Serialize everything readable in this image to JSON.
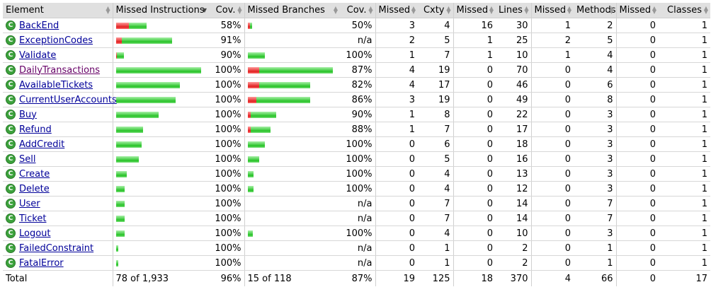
{
  "columns": {
    "element": "Element",
    "missed_instructions": "Missed Instructions",
    "cov": "Cov.",
    "missed_branches": "Missed Branches",
    "cov2": "Cov.",
    "missed": "Missed",
    "cxty": "Cxty",
    "missed_lines": "Missed",
    "lines": "Lines",
    "missed_methods": "Missed",
    "methods": "Methods",
    "missed_classes": "Missed",
    "classes": "Classes"
  },
  "rows": [
    {
      "name": "BackEnd",
      "visited": false,
      "instr_missed": 0.046,
      "instr_covered": 0.064,
      "instr_cov": "58%",
      "br_missed": 0.008,
      "br_covered": 0.008,
      "br_cov": "50%",
      "cx_missed": "3",
      "cxty": "4",
      "ln_missed": "16",
      "lines": "30",
      "m_missed": "1",
      "methods": "2",
      "c_missed": "0",
      "classes": "1"
    },
    {
      "name": "ExceptionCodes",
      "visited": false,
      "instr_missed": 0.02,
      "instr_covered": 0.179,
      "instr_cov": "91%",
      "br_missed": null,
      "br_covered": null,
      "br_cov": "n/a",
      "cx_missed": "2",
      "cxty": "5",
      "ln_missed": "1",
      "lines": "25",
      "m_missed": "2",
      "methods": "5",
      "c_missed": "0",
      "classes": "1"
    },
    {
      "name": "Validate",
      "visited": false,
      "instr_missed": 0.003,
      "instr_covered": 0.025,
      "instr_cov": "90%",
      "br_missed": 0,
      "br_covered": 0.06,
      "br_cov": "100%",
      "cx_missed": "1",
      "cxty": "7",
      "ln_missed": "1",
      "lines": "10",
      "m_missed": "1",
      "methods": "4",
      "c_missed": "0",
      "classes": "1"
    },
    {
      "name": "DailyTransactions",
      "visited": true,
      "instr_missed": 0,
      "instr_covered": 0.3,
      "instr_cov": "100%",
      "br_missed": 0.04,
      "br_covered": 0.26,
      "br_cov": "87%",
      "cx_missed": "4",
      "cxty": "19",
      "ln_missed": "0",
      "lines": "70",
      "m_missed": "0",
      "methods": "4",
      "c_missed": "0",
      "classes": "1"
    },
    {
      "name": "AvailableTickets",
      "visited": false,
      "instr_missed": 0,
      "instr_covered": 0.225,
      "instr_cov": "100%",
      "br_missed": 0.04,
      "br_covered": 0.182,
      "br_cov": "82%",
      "cx_missed": "4",
      "cxty": "17",
      "ln_missed": "0",
      "lines": "46",
      "m_missed": "0",
      "methods": "6",
      "c_missed": "0",
      "classes": "1"
    },
    {
      "name": "CurrentUserAccounts",
      "visited": false,
      "instr_missed": 0,
      "instr_covered": 0.212,
      "instr_cov": "100%",
      "br_missed": 0.03,
      "br_covered": 0.192,
      "br_cov": "86%",
      "cx_missed": "3",
      "cxty": "19",
      "ln_missed": "0",
      "lines": "49",
      "m_missed": "0",
      "methods": "8",
      "c_missed": "0",
      "classes": "1"
    },
    {
      "name": "Buy",
      "visited": false,
      "instr_missed": 0,
      "instr_covered": 0.15,
      "instr_cov": "100%",
      "br_missed": 0.01,
      "br_covered": 0.09,
      "br_cov": "90%",
      "cx_missed": "1",
      "cxty": "8",
      "ln_missed": "0",
      "lines": "22",
      "m_missed": "0",
      "methods": "3",
      "c_missed": "0",
      "classes": "1"
    },
    {
      "name": "Refund",
      "visited": false,
      "instr_missed": 0,
      "instr_covered": 0.095,
      "instr_cov": "100%",
      "br_missed": 0.01,
      "br_covered": 0.07,
      "br_cov": "88%",
      "cx_missed": "1",
      "cxty": "7",
      "ln_missed": "0",
      "lines": "17",
      "m_missed": "0",
      "methods": "3",
      "c_missed": "0",
      "classes": "1"
    },
    {
      "name": "AddCredit",
      "visited": false,
      "instr_missed": 0,
      "instr_covered": 0.09,
      "instr_cov": "100%",
      "br_missed": 0,
      "br_covered": 0.06,
      "br_cov": "100%",
      "cx_missed": "0",
      "cxty": "6",
      "ln_missed": "0",
      "lines": "18",
      "m_missed": "0",
      "methods": "3",
      "c_missed": "0",
      "classes": "1"
    },
    {
      "name": "Sell",
      "visited": false,
      "instr_missed": 0,
      "instr_covered": 0.082,
      "instr_cov": "100%",
      "br_missed": 0,
      "br_covered": 0.04,
      "br_cov": "100%",
      "cx_missed": "0",
      "cxty": "5",
      "ln_missed": "0",
      "lines": "16",
      "m_missed": "0",
      "methods": "3",
      "c_missed": "0",
      "classes": "1"
    },
    {
      "name": "Create",
      "visited": false,
      "instr_missed": 0,
      "instr_covered": 0.038,
      "instr_cov": "100%",
      "br_missed": 0,
      "br_covered": 0.02,
      "br_cov": "100%",
      "cx_missed": "0",
      "cxty": "4",
      "ln_missed": "0",
      "lines": "13",
      "m_missed": "0",
      "methods": "3",
      "c_missed": "0",
      "classes": "1"
    },
    {
      "name": "Delete",
      "visited": false,
      "instr_missed": 0,
      "instr_covered": 0.03,
      "instr_cov": "100%",
      "br_missed": 0,
      "br_covered": 0.02,
      "br_cov": "100%",
      "cx_missed": "0",
      "cxty": "4",
      "ln_missed": "0",
      "lines": "12",
      "m_missed": "0",
      "methods": "3",
      "c_missed": "0",
      "classes": "1"
    },
    {
      "name": "User",
      "visited": false,
      "instr_missed": 0,
      "instr_covered": 0.03,
      "instr_cov": "100%",
      "br_missed": null,
      "br_covered": null,
      "br_cov": "n/a",
      "cx_missed": "0",
      "cxty": "7",
      "ln_missed": "0",
      "lines": "14",
      "m_missed": "0",
      "methods": "7",
      "c_missed": "0",
      "classes": "1"
    },
    {
      "name": "Ticket",
      "visited": false,
      "instr_missed": 0,
      "instr_covered": 0.03,
      "instr_cov": "100%",
      "br_missed": null,
      "br_covered": null,
      "br_cov": "n/a",
      "cx_missed": "0",
      "cxty": "7",
      "ln_missed": "0",
      "lines": "14",
      "m_missed": "0",
      "methods": "7",
      "c_missed": "0",
      "classes": "1"
    },
    {
      "name": "Logout",
      "visited": false,
      "instr_missed": 0,
      "instr_covered": 0.03,
      "instr_cov": "100%",
      "br_missed": 0,
      "br_covered": 0.018,
      "br_cov": "100%",
      "cx_missed": "0",
      "cxty": "4",
      "ln_missed": "0",
      "lines": "10",
      "m_missed": "0",
      "methods": "3",
      "c_missed": "0",
      "classes": "1"
    },
    {
      "name": "FailedConstraint",
      "visited": false,
      "instr_missed": 0,
      "instr_covered": 0.008,
      "instr_cov": "100%",
      "br_missed": null,
      "br_covered": null,
      "br_cov": "n/a",
      "cx_missed": "0",
      "cxty": "1",
      "ln_missed": "0",
      "lines": "2",
      "m_missed": "0",
      "methods": "1",
      "c_missed": "0",
      "classes": "1"
    },
    {
      "name": "FatalError",
      "visited": false,
      "instr_missed": 0,
      "instr_covered": 0.008,
      "instr_cov": "100%",
      "br_missed": null,
      "br_covered": null,
      "br_cov": "n/a",
      "cx_missed": "0",
      "cxty": "1",
      "ln_missed": "0",
      "lines": "2",
      "m_missed": "0",
      "methods": "1",
      "c_missed": "0",
      "classes": "1"
    }
  ],
  "total": {
    "label": "Total",
    "instr": "78 of 1,933",
    "instr_cov": "96%",
    "br": "15 of 118",
    "br_cov": "87%",
    "cx_missed": "19",
    "cxty": "125",
    "ln_missed": "18",
    "lines": "370",
    "m_missed": "4",
    "methods": "66",
    "c_missed": "0",
    "classes": "17"
  },
  "colors": {
    "header_bg": "#e0e0e0",
    "bar_missed": "#e02020",
    "bar_covered": "#27c227",
    "link": "#000099",
    "visited_link": "#660066",
    "class_icon": "#3ca23c"
  },
  "icons": {
    "class_icon": "class-icon",
    "sort_arrows": "sort-arrows-icon"
  }
}
